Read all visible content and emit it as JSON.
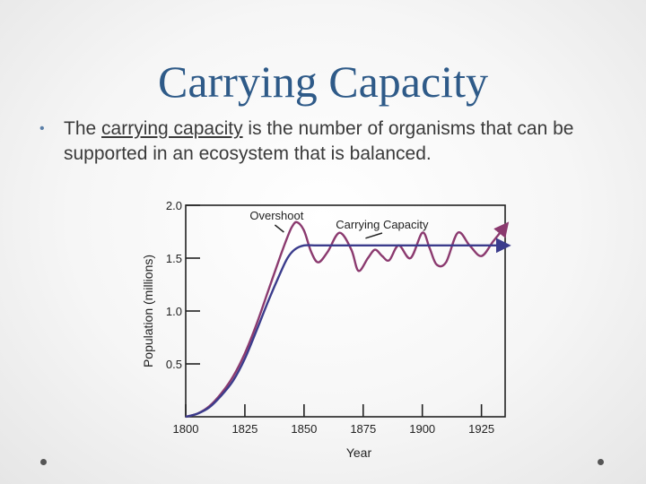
{
  "slide": {
    "title": "Carrying Capacity",
    "bullet": {
      "prefix": "The ",
      "term": "carrying capacity",
      "suffix": " is the number of organisms that can be supported in an ecosystem that is balanced."
    }
  },
  "chart_data": {
    "type": "line",
    "title": "",
    "xlabel": "Year",
    "ylabel": "Population (millions)",
    "xlim": [
      1800,
      1935
    ],
    "ylim": [
      0,
      2.0
    ],
    "xticks": [
      1800,
      1825,
      1850,
      1875,
      1900,
      1925
    ],
    "yticks": [
      0.5,
      1.0,
      1.5,
      2.0
    ],
    "ytick_labels": [
      "0.5",
      "1.0",
      "1.5",
      "2.0"
    ],
    "grid": false,
    "series": [
      {
        "color": "#8b3a6f",
        "x": [
          1800,
          1805,
          1810,
          1815,
          1820,
          1825,
          1830,
          1835,
          1840,
          1843,
          1845,
          1847,
          1850,
          1853,
          1856,
          1860,
          1865,
          1870,
          1873,
          1877,
          1880,
          1883,
          1886,
          1890,
          1895,
          1900,
          1903,
          1906,
          1910,
          1915,
          1920,
          1925,
          1930,
          1935
        ],
        "y": [
          0.0,
          0.03,
          0.1,
          0.22,
          0.38,
          0.6,
          0.88,
          1.2,
          1.52,
          1.7,
          1.8,
          1.84,
          1.76,
          1.56,
          1.46,
          1.56,
          1.74,
          1.58,
          1.38,
          1.5,
          1.58,
          1.52,
          1.48,
          1.62,
          1.5,
          1.74,
          1.6,
          1.44,
          1.46,
          1.74,
          1.62,
          1.52,
          1.66,
          1.8
        ]
      },
      {
        "color": "#3b3c8c",
        "x": [
          1800,
          1805,
          1810,
          1815,
          1820,
          1825,
          1830,
          1835,
          1840,
          1843,
          1846,
          1850,
          1855,
          1860,
          1880,
          1900,
          1920,
          1935
        ],
        "y": [
          0.0,
          0.03,
          0.09,
          0.2,
          0.34,
          0.55,
          0.82,
          1.1,
          1.36,
          1.5,
          1.58,
          1.62,
          1.62,
          1.62,
          1.62,
          1.62,
          1.62,
          1.62
        ]
      }
    ],
    "annotations": [
      {
        "text": "Overshoot",
        "x": 1843,
        "y": 1.84
      },
      {
        "text": "Carrying Capacity",
        "x": 1876,
        "y": 1.62
      }
    ]
  }
}
